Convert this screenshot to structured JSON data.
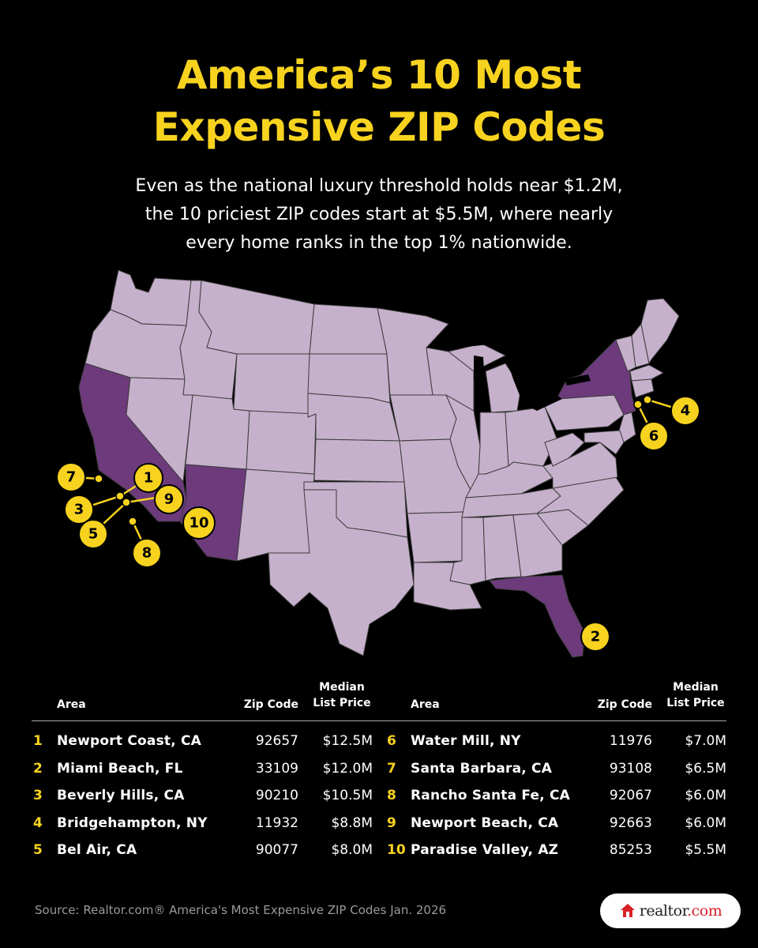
{
  "header": {
    "title_line1": "America’s 10 Most",
    "title_line2": "Expensive ZIP Codes",
    "subtitle_line1": "Even as the national luxury threshold holds near $1.2M,",
    "subtitle_line2": "the 10 priciest ZIP codes start at $5.5M, where nearly",
    "subtitle_line3": "every home ranks in the top 1% nationwide."
  },
  "colors": {
    "background": "#000000",
    "accent": "#f7d31f",
    "state_fill": "#c6b1cc",
    "highlighted_state_fill": "#6d3a7c"
  },
  "map": {
    "highlighted_states": [
      "California",
      "Arizona",
      "New York",
      "Florida"
    ],
    "markers": [
      {
        "rank": "1"
      },
      {
        "rank": "2"
      },
      {
        "rank": "3"
      },
      {
        "rank": "4"
      },
      {
        "rank": "5"
      },
      {
        "rank": "6"
      },
      {
        "rank": "7"
      },
      {
        "rank": "8"
      },
      {
        "rank": "9"
      },
      {
        "rank": "10"
      }
    ]
  },
  "table": {
    "headers": {
      "area": "Area",
      "zip": "Zip Code",
      "price_line1": "Median",
      "price_line2": "List Price"
    },
    "left": [
      {
        "rank": "1",
        "area": "Newport Coast, CA",
        "zip": "92657",
        "price": "$12.5M"
      },
      {
        "rank": "2",
        "area": "Miami Beach, FL",
        "zip": "33109",
        "price": "$12.0M"
      },
      {
        "rank": "3",
        "area": "Beverly Hills, CA",
        "zip": "90210",
        "price": "$10.5M"
      },
      {
        "rank": "4",
        "area": "Bridgehampton, NY",
        "zip": "11932",
        "price": "$8.8M"
      },
      {
        "rank": "5",
        "area": "Bel Air, CA",
        "zip": "90077",
        "price": "$8.0M"
      }
    ],
    "right": [
      {
        "rank": "6",
        "area": "Water Mill, NY",
        "zip": "11976",
        "price": "$7.0M"
      },
      {
        "rank": "7",
        "area": "Santa Barbara, CA",
        "zip": "93108",
        "price": "$6.5M"
      },
      {
        "rank": "8",
        "area": "Rancho Santa Fe, CA",
        "zip": "92067",
        "price": "$6.0M"
      },
      {
        "rank": "9",
        "area": "Newport Beach, CA",
        "zip": "92663",
        "price": "$6.0M"
      },
      {
        "rank": "10",
        "area": "Paradise Valley, AZ",
        "zip": "85253",
        "price": "$5.5M"
      }
    ]
  },
  "footer": {
    "source": "Source: Realtor.com® America's Most Expensive ZIP Codes Jan. 2026",
    "logo_text_main": "realtor",
    "logo_text_suffix": ".com",
    "logo_icon": "house-icon"
  }
}
